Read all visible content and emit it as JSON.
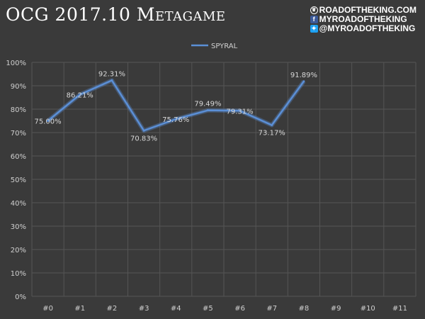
{
  "header": {
    "title": "OCG 2017.10 Metagame"
  },
  "brand": {
    "logo_icon": "crown-logo-icon",
    "site": "ROADOFTHEKING.COM",
    "facebook_icon": "facebook-icon",
    "facebook": "MYROADOFTHEKING",
    "twitter_icon": "twitter-icon",
    "twitter": "@MYROADOFTHEKING"
  },
  "chart_data": {
    "type": "line",
    "title": "OCG 2017.10 Metagame",
    "categories": [
      "#0",
      "#1",
      "#2",
      "#3",
      "#4",
      "#5",
      "#6",
      "#7",
      "#8",
      "#9",
      "#10",
      "#11"
    ],
    "series": [
      {
        "name": "SPYRAL",
        "color": "#5b8fd6",
        "values": [
          75.0,
          86.21,
          92.31,
          70.83,
          75.76,
          79.49,
          79.31,
          73.17,
          91.89,
          null,
          null,
          null
        ],
        "data_labels": [
          "75.00%",
          "86.21%",
          "92.31%",
          "70.83%",
          "75.76%",
          "79.49%",
          "79.31%",
          "73.17%",
          "91.89%"
        ]
      }
    ],
    "ylim": [
      0,
      100
    ],
    "yticks": [
      "0%",
      "10%",
      "20%",
      "30%",
      "40%",
      "50%",
      "60%",
      "70%",
      "80%",
      "90%",
      "100%"
    ],
    "grid": true,
    "legend": "top-center",
    "xlabel": "",
    "ylabel": ""
  }
}
